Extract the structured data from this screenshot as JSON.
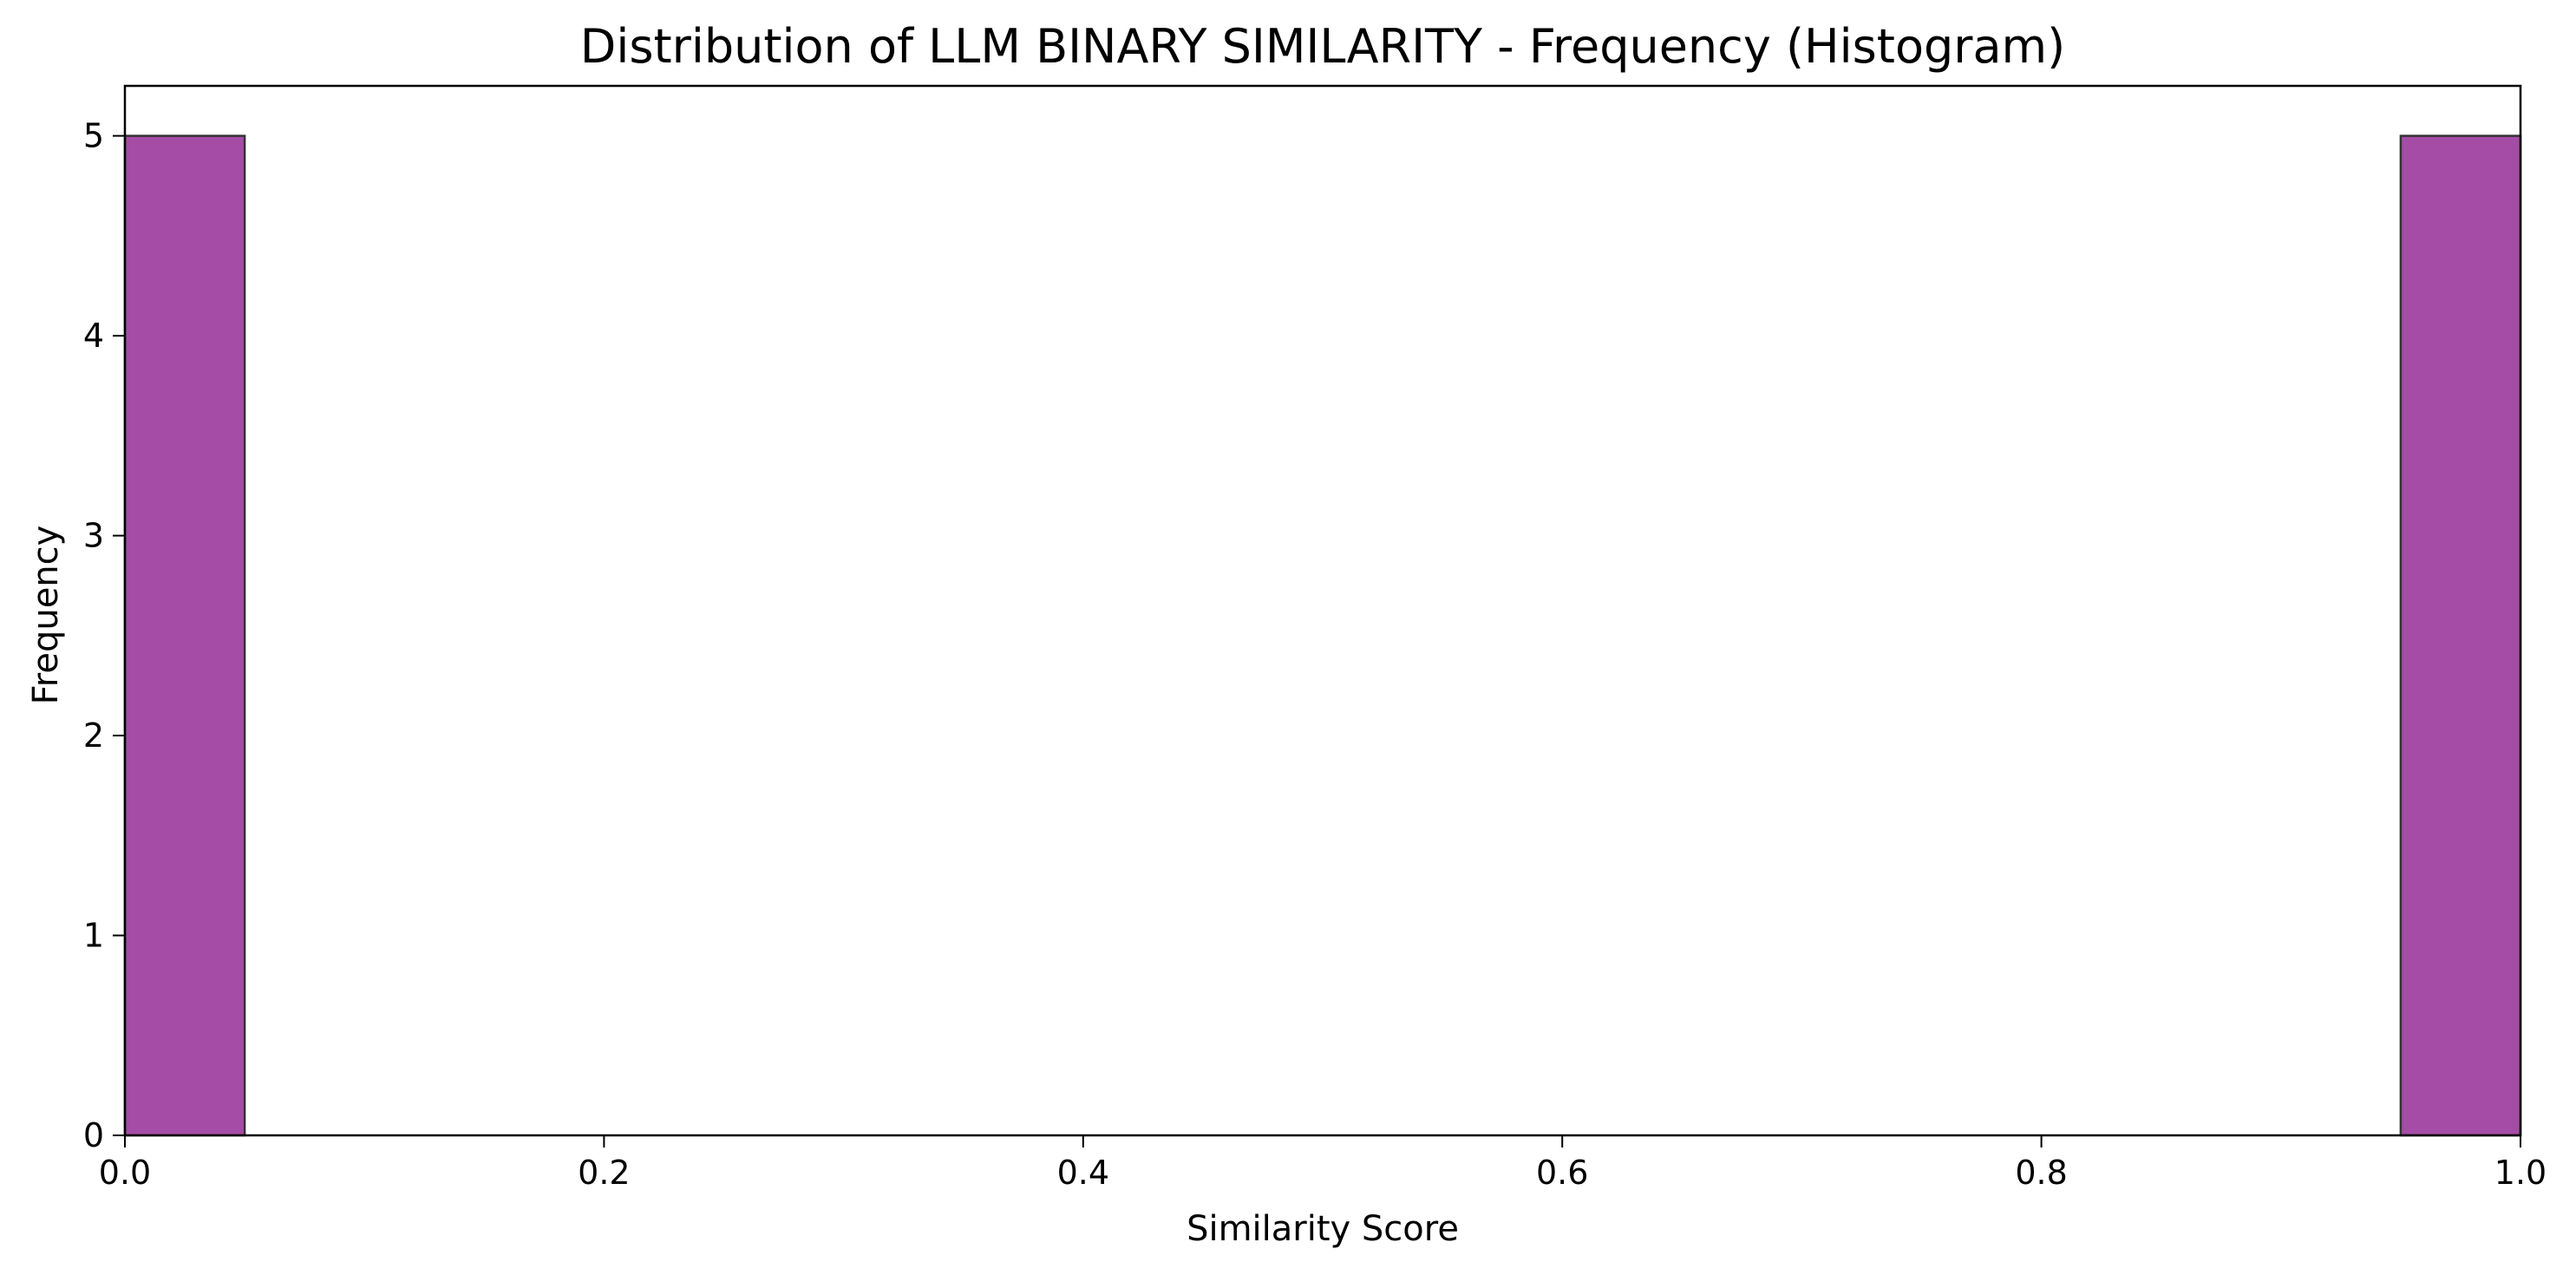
{
  "chart_data": {
    "type": "bar",
    "title": "Distribution of LLM BINARY SIMILARITY - Frequency (Histogram)",
    "xlabel": "Similarity Score",
    "ylabel": "Frequency",
    "xlim": [
      0.0,
      1.0
    ],
    "ylim": [
      0,
      5.25
    ],
    "x_ticks": [
      {
        "value": 0.0,
        "label": "0.0"
      },
      {
        "value": 0.2,
        "label": "0.2"
      },
      {
        "value": 0.4,
        "label": "0.4"
      },
      {
        "value": 0.6,
        "label": "0.6"
      },
      {
        "value": 0.8,
        "label": "0.8"
      },
      {
        "value": 1.0,
        "label": "1.0"
      }
    ],
    "y_ticks": [
      {
        "value": 0,
        "label": "0"
      },
      {
        "value": 1,
        "label": "1"
      },
      {
        "value": 2,
        "label": "2"
      },
      {
        "value": 3,
        "label": "3"
      },
      {
        "value": 4,
        "label": "4"
      },
      {
        "value": 5,
        "label": "5"
      }
    ],
    "bins": [
      {
        "x0": 0.0,
        "x1": 0.05,
        "count": 5
      },
      {
        "x0": 0.95,
        "x1": 1.0,
        "count": 5
      }
    ],
    "grid": false,
    "bar_color": "#a54ca6",
    "edge_color": "#333333"
  }
}
